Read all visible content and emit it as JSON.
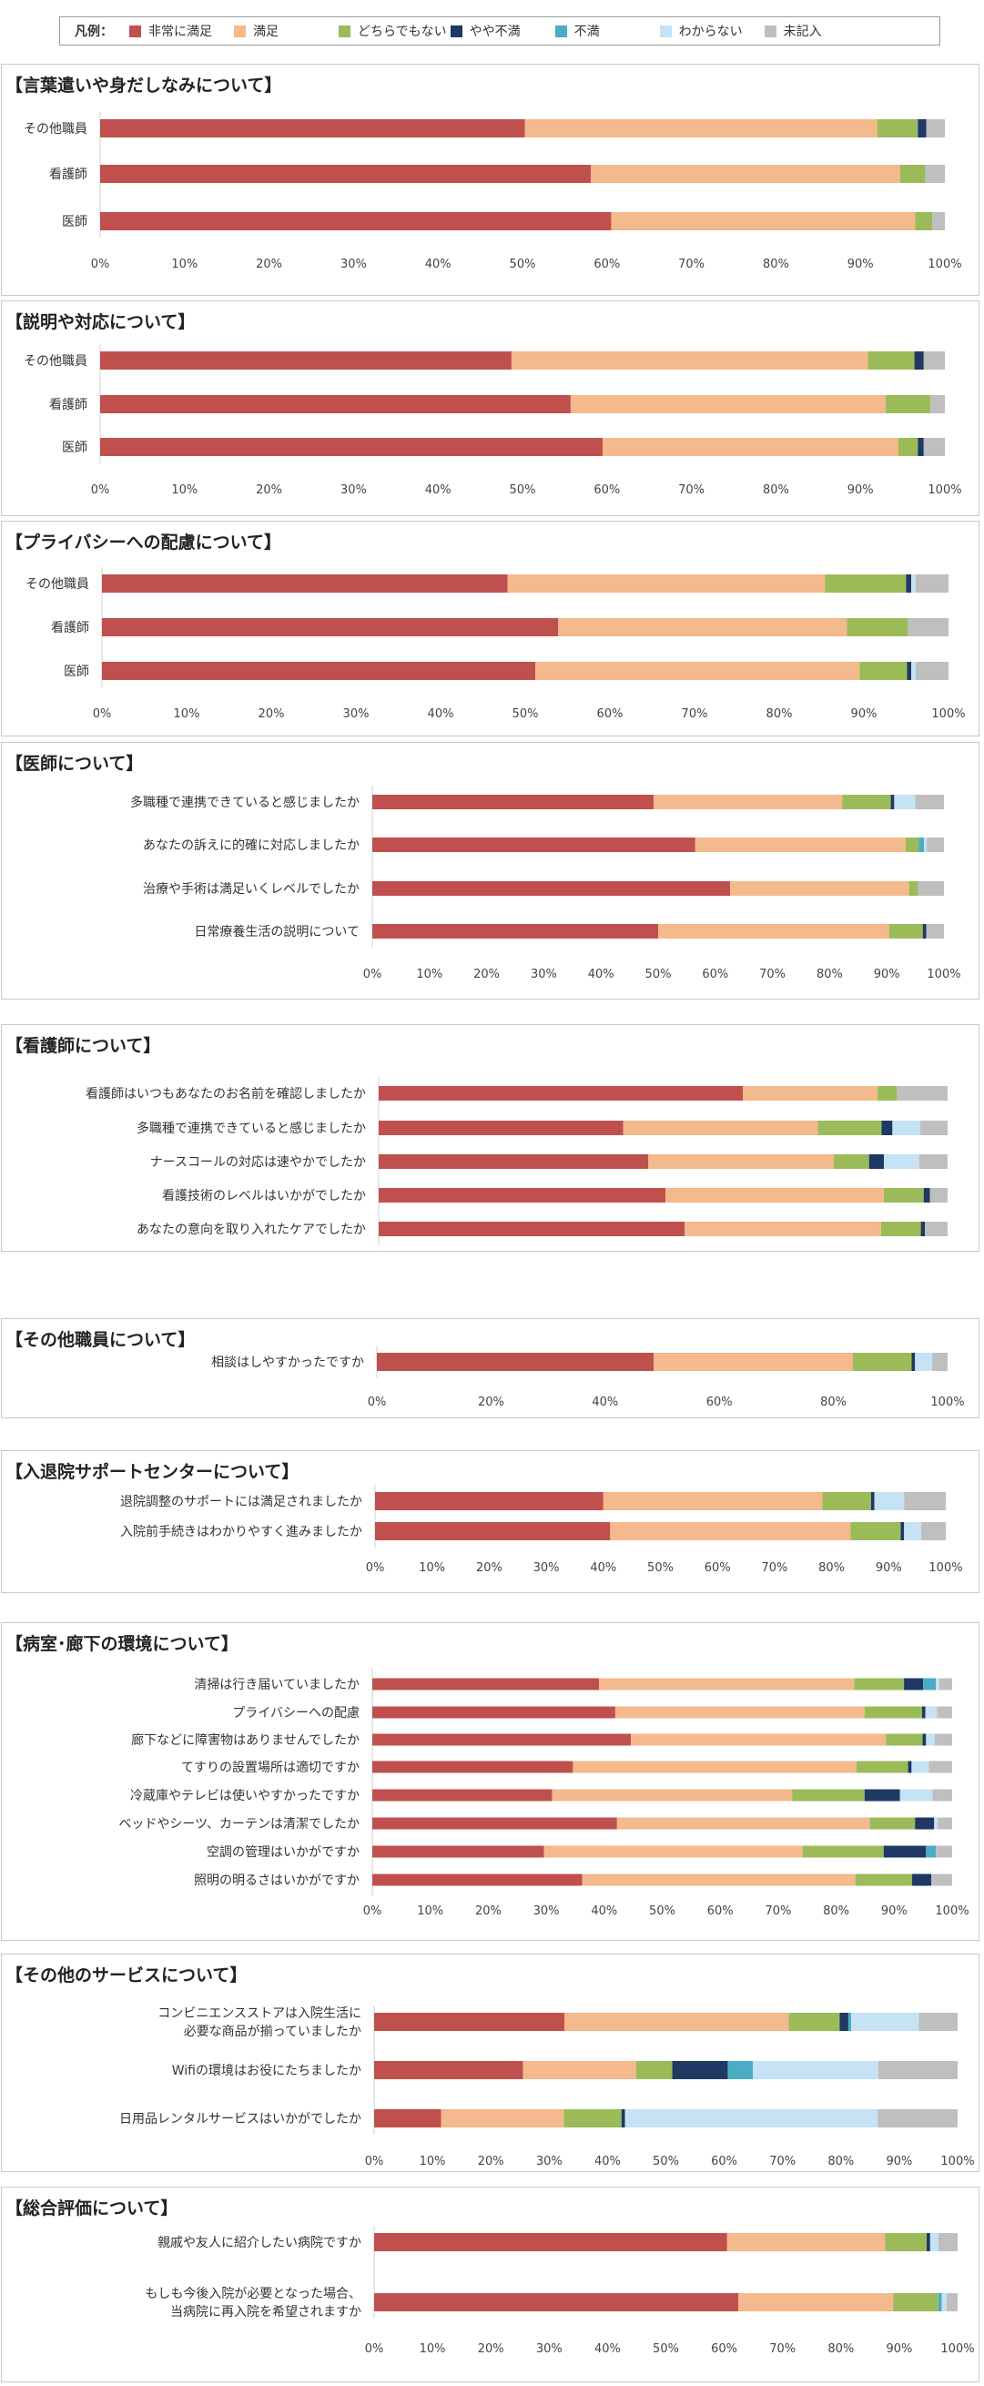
{
  "legend": {
    "title": "凡例：",
    "items": [
      {
        "label": "非常に満足",
        "color": "#c0504d"
      },
      {
        "label": "満足",
        "color": "#f4b98c"
      },
      {
        "label": "どちらでもない",
        "color": "#9bbb59"
      },
      {
        "label": "やや不満",
        "color": "#1f3864"
      },
      {
        "label": "不満",
        "color": "#4bacc6"
      },
      {
        "label": "わからない",
        "color": "#c5e3f4"
      },
      {
        "label": "未記入",
        "color": "#bfbfbf"
      }
    ]
  },
  "panels": [
    {
      "title": "【言葉遣いや身だしなみについて】"
    },
    {
      "title": "【説明や対応について】"
    },
    {
      "title": "【プライバシーへの配慮について】"
    },
    {
      "title": "【医師について】"
    },
    {
      "title": "【看護師について】"
    },
    {
      "title": "【その他職員について】"
    },
    {
      "title": "【入退院サポートセンターについて】"
    },
    {
      "title": "【病室･廊下の環境について】"
    },
    {
      "title": "【その他のサービスについて】"
    },
    {
      "title": "【総合評価について】"
    }
  ],
  "chart_data": [
    {
      "type": "bar",
      "orientation": "horizontal",
      "stacked": true,
      "title": "【言葉遣いや身だしなみについて】",
      "series_names": [
        "非常に満足",
        "満足",
        "どちらでもない",
        "やや不満",
        "不満",
        "わからない",
        "未記入"
      ],
      "xlim": [
        0,
        100
      ],
      "x_ticks": [
        "0%",
        "10%",
        "20%",
        "30%",
        "40%",
        "50%",
        "60%",
        "70%",
        "80%",
        "90%",
        "100%"
      ],
      "categories": [
        "その他職員",
        "看護師",
        "医師"
      ],
      "values": [
        [
          50.3,
          41.7,
          4.8,
          1,
          0,
          0,
          2.2
        ],
        [
          58.1,
          36.6,
          3.0,
          0,
          0,
          0,
          2.3
        ],
        [
          60.5,
          36.0,
          2.0,
          0,
          0,
          0,
          1.5
        ]
      ]
    },
    {
      "type": "bar",
      "orientation": "horizontal",
      "stacked": true,
      "title": "【説明や対応について】",
      "series_names": [
        "非常に満足",
        "満足",
        "どちらでもない",
        "やや不満",
        "不満",
        "わからない",
        "未記入"
      ],
      "xlim": [
        0,
        100
      ],
      "x_ticks": [
        "0%",
        "10%",
        "20%",
        "30%",
        "40%",
        "50%",
        "60%",
        "70%",
        "80%",
        "90%",
        "100%"
      ],
      "categories": [
        "その他職員",
        "看護師",
        "医師"
      ],
      "values": [
        [
          48.7,
          42.2,
          5.5,
          1.1,
          0,
          0,
          2.5
        ],
        [
          55.7,
          37.3,
          5.3,
          0,
          0,
          0,
          1.7
        ],
        [
          59.5,
          35.0,
          2.3,
          0.7,
          0,
          0,
          2.5
        ]
      ]
    },
    {
      "type": "bar",
      "orientation": "horizontal",
      "stacked": true,
      "title": "【プライバシーへの配慮について】",
      "series_names": [
        "非常に満足",
        "満足",
        "どちらでもない",
        "やや不満",
        "不満",
        "わからない",
        "未記入"
      ],
      "xlim": [
        0,
        100
      ],
      "x_ticks": [
        "0%",
        "10%",
        "20%",
        "30%",
        "40%",
        "50%",
        "60%",
        "70%",
        "80%",
        "90%",
        "100%"
      ],
      "categories": [
        "その他職員",
        "看護師",
        "医師"
      ],
      "values": [
        [
          47.9,
          37.5,
          9.6,
          0.6,
          0,
          0.5,
          3.9
        ],
        [
          53.9,
          34.1,
          7.2,
          0,
          0,
          0,
          4.8
        ],
        [
          51.2,
          38.3,
          5.6,
          0.5,
          0,
          0.5,
          3.9
        ]
      ]
    },
    {
      "type": "bar",
      "orientation": "horizontal",
      "stacked": true,
      "title": "【医師について】",
      "series_names": [
        "非常に満足",
        "満足",
        "どちらでもない",
        "やや不満",
        "不満",
        "わからない",
        "未記入"
      ],
      "xlim": [
        0,
        100
      ],
      "x_ticks": [
        "0%",
        "10%",
        "20%",
        "30%",
        "40%",
        "50%",
        "60%",
        "70%",
        "80%",
        "90%",
        "100%"
      ],
      "categories": [
        "多職種で連携できていると感じましたか",
        "あなたの訴えに的確に対応しましたか",
        "治療や手術は満足いくレベルでしたか",
        "日常療養生活の説明について"
      ],
      "values": [
        [
          49.2,
          33.0,
          8.5,
          0.6,
          0,
          3.7,
          5.0
        ],
        [
          56.5,
          36.8,
          2.3,
          0,
          0.9,
          0.5,
          3.0
        ],
        [
          62.6,
          31.3,
          1.6,
          0,
          0,
          0,
          4.5
        ],
        [
          50.0,
          40.4,
          5.9,
          0.6,
          0,
          0,
          3.1
        ]
      ]
    },
    {
      "type": "bar",
      "orientation": "horizontal",
      "stacked": true,
      "title": "【看護師について】",
      "series_names": [
        "非常に満足",
        "満足",
        "どちらでもない",
        "やや不満",
        "不満",
        "わからない",
        "未記入"
      ],
      "xlim": [
        0,
        100
      ],
      "x_ticks": [
        "0%",
        "20%",
        "40%",
        "60%",
        "80%",
        "100%"
      ],
      "categories": [
        "看護師はいつもあなたのお名前を確認しましたか",
        "多職種で連携できていると感じましたか",
        "ナースコールの対応は速やかでしたか",
        "看護技術のレベルはいかがでしたか",
        "あなたの意向を取り入れたケアでしたか"
      ],
      "values": [
        [
          64.0,
          23.7,
          3.4,
          0,
          0,
          0,
          8.9
        ],
        [
          43.0,
          34.2,
          11.2,
          1.9,
          0,
          4.9,
          4.8
        ],
        [
          47.4,
          32.6,
          6.2,
          2.6,
          0,
          6.2,
          5.0
        ],
        [
          50.4,
          38.4,
          7.0,
          1.1,
          0,
          0,
          3.1
        ],
        [
          53.8,
          34.5,
          7.0,
          0.7,
          0,
          0,
          4.0
        ]
      ]
    },
    {
      "type": "bar",
      "orientation": "horizontal",
      "stacked": true,
      "title": "【その他職員について】",
      "series_names": [
        "非常に満足",
        "満足",
        "どちらでもない",
        "やや不満",
        "不満",
        "わからない",
        "未記入"
      ],
      "xlim": [
        0,
        100
      ],
      "x_ticks": [
        "0%",
        "20%",
        "40%",
        "60%",
        "80%",
        "100%"
      ],
      "categories": [
        "相談はしやすかったですか"
      ],
      "values": [
        [
          48.5,
          34.9,
          10.3,
          0.6,
          0,
          3.0,
          2.7
        ]
      ]
    },
    {
      "type": "bar",
      "orientation": "horizontal",
      "stacked": true,
      "title": "【入退院サポートセンターについて】",
      "series_names": [
        "非常に満足",
        "満足",
        "どちらでもない",
        "やや不満",
        "不満",
        "わからない",
        "未記入"
      ],
      "xlim": [
        0,
        100
      ],
      "x_ticks": [
        "0%",
        "10%",
        "20%",
        "30%",
        "40%",
        "50%",
        "60%",
        "70%",
        "80%",
        "90%",
        "100%"
      ],
      "categories": [
        "退院調整のサポートには満足されましたか",
        "入院前手続きはわかりやすく進みましたか"
      ],
      "values": [
        [
          40.0,
          38.4,
          8.5,
          0.6,
          0,
          5.2,
          7.3
        ],
        [
          41.2,
          42.1,
          8.8,
          0.6,
          0,
          3.0,
          4.3
        ]
      ]
    },
    {
      "type": "bar",
      "orientation": "horizontal",
      "stacked": true,
      "title": "【病室･廊下の環境について】",
      "series_names": [
        "非常に満足",
        "満足",
        "どちらでもない",
        "やや不満",
        "不満",
        "わからない",
        "未記入"
      ],
      "xlim": [
        0,
        100
      ],
      "x_ticks": [
        "0%",
        "10%",
        "20%",
        "30%",
        "40%",
        "50%",
        "60%",
        "70%",
        "80%",
        "90%",
        "100%"
      ],
      "categories": [
        "清掃は行き届いていましたか",
        "プライバシーへの配慮",
        "廊下などに障害物はありませんでしたか",
        "てすりの設置場所は適切ですか",
        "冷蔵庫やテレビは使いやすかったですか",
        "ベッドやシーツ、カーテンは清潔でしたか",
        "空調の管理はいかがですか",
        "照明の明るさはいかがですか"
      ],
      "values": [
        [
          39.1,
          44.0,
          8.6,
          3.3,
          2.2,
          0.6,
          2.2
        ],
        [
          41.9,
          43.0,
          9.9,
          0.6,
          0,
          2.0,
          2.6
        ],
        [
          44.6,
          44.0,
          6.3,
          0.6,
          0,
          1.5,
          3.0
        ],
        [
          34.6,
          48.9,
          8.9,
          0.6,
          0,
          3.0,
          4.0
        ],
        [
          31.0,
          41.4,
          12.5,
          6.1,
          0,
          5.6,
          3.4
        ],
        [
          42.2,
          43.6,
          7.8,
          3.3,
          0,
          0.6,
          2.5
        ],
        [
          29.6,
          44.6,
          14.0,
          7.3,
          1.7,
          0,
          2.8
        ],
        [
          36.2,
          47.1,
          9.8,
          3.3,
          0,
          0,
          3.6
        ]
      ]
    },
    {
      "type": "bar",
      "orientation": "horizontal",
      "stacked": true,
      "title": "【その他のサービスについて】",
      "series_names": [
        "非常に満足",
        "満足",
        "どちらでもない",
        "やや不満",
        "不満",
        "わからない",
        "未記入"
      ],
      "xlim": [
        0,
        100
      ],
      "x_ticks": [
        "0%",
        "10%",
        "20%",
        "30%",
        "40%",
        "50%",
        "60%",
        "70%",
        "80%",
        "90%",
        "100%"
      ],
      "categories": [
        "コンビニエンスストアは入院生活に必要な商品が揃っていましたか",
        "Wifiの環境はお役にたちましたか",
        "日用品レンタルサービスはいかがでしたか"
      ],
      "values": [
        [
          32.9,
          38.8,
          8.8,
          1.5,
          0.5,
          11.7,
          6.7
        ],
        [
          25.5,
          19.4,
          6.2,
          9.5,
          4.3,
          21.5,
          13.6
        ],
        [
          11.5,
          21.0,
          9.9,
          0.6,
          0,
          43.3,
          13.7
        ]
      ]
    },
    {
      "type": "bar",
      "orientation": "horizontal",
      "stacked": true,
      "title": "【総合評価について】",
      "series_names": [
        "非常に満足",
        "満足",
        "どちらでもない",
        "やや不満",
        "不満",
        "わからない",
        "未記入"
      ],
      "xlim": [
        0,
        100
      ],
      "x_ticks": [
        "0%",
        "10%",
        "20%",
        "30%",
        "40%",
        "50%",
        "60%",
        "70%",
        "80%",
        "90%",
        "100%"
      ],
      "categories": [
        "親戚や友人に紹介したい病院ですか",
        "もしも今後入院が必要となった場合、当病院に再入院を希望されますか"
      ],
      "values": [
        [
          60.5,
          27.1,
          7.1,
          0.6,
          0,
          1.4,
          3.3
        ],
        [
          62.4,
          26.6,
          7.7,
          0,
          0.6,
          0.8,
          1.9
        ]
      ]
    }
  ]
}
